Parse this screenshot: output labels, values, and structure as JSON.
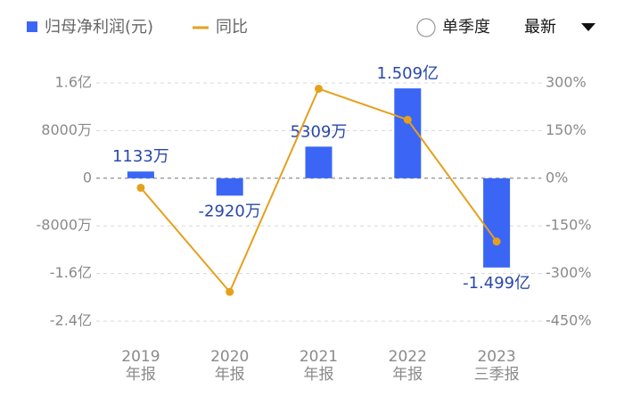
{
  "chart_data": {
    "type": "bar_line",
    "categories": [
      [
        "2019",
        "年报"
      ],
      [
        "2020",
        "年报"
      ],
      [
        "2021",
        "年报"
      ],
      [
        "2022",
        "年报"
      ],
      [
        "2023",
        "三季报"
      ]
    ],
    "series": [
      {
        "name": "归母净利润(元)",
        "type": "bar",
        "color": "#3b66f5",
        "values": [
          11330000,
          -29200000,
          53090000,
          150900000,
          -149900000
        ],
        "value_labels": [
          "1133万",
          "-2920万",
          "5309万",
          "1.509亿",
          "-1.499亿"
        ]
      },
      {
        "name": "同比",
        "type": "line",
        "axis": "y2",
        "color": "#e5a01c",
        "values": [
          -30,
          -357.7,
          281.8,
          184.2,
          -199.3
        ]
      }
    ],
    "ylim": [
      -240000000,
      160000000
    ],
    "yticks": [
      {
        "value": 160000000,
        "label": "1.6亿"
      },
      {
        "value": 80000000,
        "label": "8000万"
      },
      0,
      {
        "value": -80000000,
        "label": "-8000万"
      },
      {
        "value": -160000000,
        "label": "-1.6亿"
      },
      {
        "value": -240000000,
        "label": "-2.4亿"
      }
    ],
    "y2lim": [
      -450,
      300
    ],
    "y2ticks": [
      {
        "value": 300,
        "label": "300%"
      },
      {
        "value": 150,
        "label": "150%"
      },
      {
        "value": 0,
        "label": "0%"
      },
      {
        "value": -150,
        "label": "-150%"
      },
      {
        "value": -300,
        "label": "-300%"
      },
      {
        "value": -450,
        "label": "-450%"
      }
    ],
    "grid": true,
    "controls": {
      "period": "单季度",
      "sort": "最新"
    }
  }
}
